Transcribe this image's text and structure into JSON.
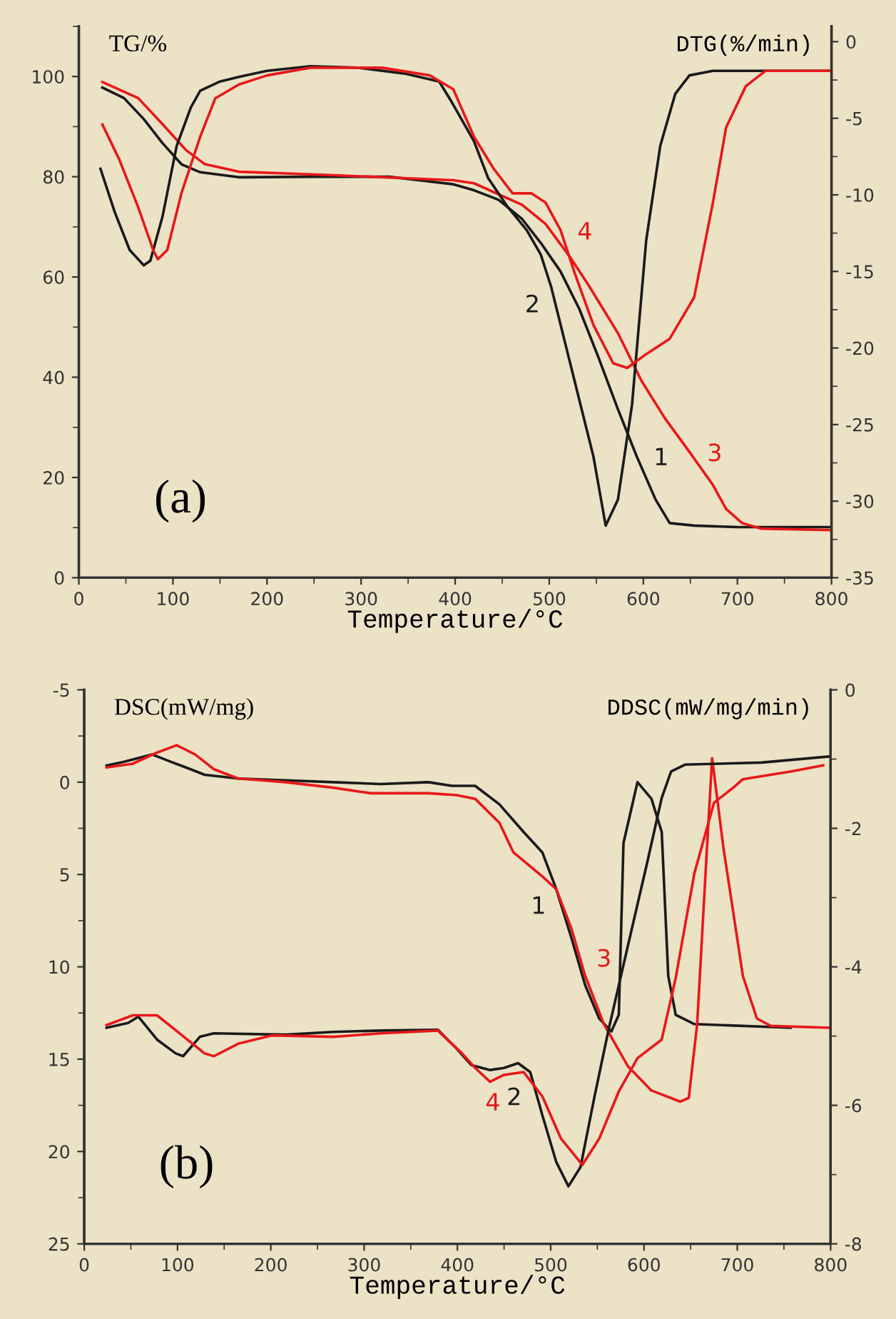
{
  "chart_data": [
    {
      "type": "line",
      "title": "(a)",
      "xlabel": "Temperature/°C",
      "ylabel": "TG/%",
      "y2label": "DTG(%/min)",
      "xlim": [
        0,
        800
      ],
      "xticks": [
        0,
        {
          "value": 50,
          "label": null
        },
        100,
        {
          "value": 150,
          "label": null
        },
        200,
        {
          "value": 250,
          "label": null
        },
        300,
        {
          "value": 350,
          "label": null
        },
        400,
        {
          "value": 450,
          "label": null
        },
        500,
        {
          "value": 550,
          "label": null
        },
        600,
        {
          "value": 650,
          "label": null
        },
        700,
        {
          "value": 750,
          "label": null
        },
        800
      ],
      "ylim": [
        0,
        110
      ],
      "yticks": [
        0,
        {
          "value": 10,
          "label": null
        },
        20,
        {
          "value": 30,
          "label": null
        },
        40,
        {
          "value": 50,
          "label": null
        },
        60,
        {
          "value": 70,
          "label": null
        },
        80,
        {
          "value": 90,
          "label": null
        },
        100,
        {
          "value": 110,
          "label": null
        }
      ],
      "y2lim": [
        -35,
        1
      ],
      "y2ticks": [
        -35,
        {
          "value": -32.5,
          "label": null
        },
        -30,
        {
          "value": -27.5,
          "label": null
        },
        -25,
        {
          "value": -22.5,
          "label": null
        },
        -20,
        {
          "value": -17.5,
          "label": null
        },
        -15,
        {
          "value": -12.5,
          "label": null
        },
        -10,
        {
          "value": -7.5,
          "label": null
        },
        -5,
        {
          "value": -2.5,
          "label": null
        },
        0
      ],
      "grid": false,
      "legend": false,
      "line_style": "solid",
      "marker": "none",
      "series": [
        {
          "name": "1",
          "color": "#1a1a1a",
          "x": [
            25,
            48,
            69,
            89,
            109,
            129,
            170,
            250,
            330,
            398,
            420,
            446,
            471,
            491,
            512,
            532,
            552,
            573,
            593,
            613,
            628,
            654,
            700,
            800
          ],
          "values": [
            97.8,
            95.7,
            91.5,
            86.7,
            82.5,
            80.9,
            79.9,
            80.0,
            80.0,
            78.5,
            77.3,
            75.4,
            71.6,
            66.8,
            61.1,
            53.6,
            44.1,
            33.6,
            24.2,
            15.6,
            10.9,
            10.4,
            10.1,
            10.1
          ]
        },
        {
          "name": "2",
          "color": "#1a1a1a",
          "axis": "y2",
          "x": [
            23,
            38,
            54,
            69,
            76,
            89,
            104,
            119,
            129,
            150,
            170,
            200,
            246,
            297,
            348,
            383,
            395,
            420,
            435,
            456,
            476,
            491,
            502,
            517,
            532,
            547,
            560,
            573,
            588,
            603,
            618,
            634,
            649,
            674,
            800
          ],
          "values": [
            -8.3,
            -11.1,
            -13.6,
            -14.6,
            -14.3,
            -11.4,
            -6.8,
            -4.3,
            -3.2,
            -2.6,
            -2.3,
            -1.9,
            -1.6,
            -1.7,
            -2.1,
            -2.6,
            -3.8,
            -6.5,
            -8.9,
            -10.8,
            -12.3,
            -13.9,
            -16.0,
            -19.7,
            -23.4,
            -27.1,
            -31.6,
            -29.9,
            -23.7,
            -13.0,
            -6.8,
            -3.4,
            -2.2,
            -1.9,
            -1.9
          ]
        },
        {
          "name": "3",
          "color": "#e8181a",
          "x": [
            25,
            63,
            89,
            114,
            134,
            170,
            272,
            398,
            420,
            471,
            496,
            522,
            542,
            573,
            598,
            623,
            649,
            674,
            688,
            705,
            725,
            800
          ],
          "values": [
            98.9,
            95.7,
            90.5,
            85.3,
            82.5,
            81.0,
            80.3,
            79.3,
            78.7,
            74.4,
            70.6,
            64.0,
            58.3,
            48.8,
            39.3,
            31.8,
            25.1,
            18.5,
            13.7,
            10.9,
            9.8,
            9.5
          ]
        },
        {
          "name": "4",
          "color": "#e8181a",
          "axis": "y2",
          "x": [
            25,
            43,
            63,
            79,
            84,
            94,
            109,
            129,
            145,
            170,
            200,
            246,
            322,
            373,
            398,
            420,
            441,
            461,
            481,
            496,
            512,
            527,
            547,
            568,
            583,
            603,
            628,
            654,
            674,
            688,
            709,
            730,
            800
          ],
          "values": [
            -5.4,
            -7.7,
            -10.8,
            -13.6,
            -14.2,
            -13.6,
            -9.9,
            -6.2,
            -3.7,
            -2.8,
            -2.2,
            -1.7,
            -1.7,
            -2.2,
            -3.1,
            -6.2,
            -8.3,
            -9.9,
            -9.9,
            -10.5,
            -12.3,
            -15.1,
            -18.5,
            -21.0,
            -21.3,
            -20.4,
            -19.4,
            -16.7,
            -10.5,
            -5.6,
            -2.9,
            -1.9,
            -1.9
          ]
        }
      ]
    },
    {
      "type": "line",
      "title": "(b)",
      "xlabel": "Temperature/°C",
      "ylabel": "DSC(mW/mg)",
      "y2label": "DDSC(mW/mg/min)",
      "xlim": [
        0,
        800
      ],
      "xticks": [
        0,
        {
          "value": 50,
          "label": null
        },
        100,
        {
          "value": 150,
          "label": null
        },
        200,
        {
          "value": 250,
          "label": null
        },
        300,
        {
          "value": 350,
          "label": null
        },
        400,
        {
          "value": 450,
          "label": null
        },
        500,
        {
          "value": 550,
          "label": null
        },
        600,
        {
          "value": 650,
          "label": null
        },
        700,
        {
          "value": 750,
          "label": null
        },
        800
      ],
      "ylim": [
        25,
        -5
      ],
      "yticks": [
        -5,
        {
          "value": -2.5,
          "label": null
        },
        0,
        {
          "value": 2.5,
          "label": null
        },
        5,
        {
          "value": 7.5,
          "label": null
        },
        10,
        {
          "value": 12.5,
          "label": null
        },
        15,
        {
          "value": 17.5,
          "label": null
        },
        20,
        {
          "value": 22.5,
          "label": null
        },
        25
      ],
      "y2lim": [
        -8,
        0
      ],
      "y2ticks": [
        -8,
        {
          "value": -7,
          "label": null
        },
        -6,
        {
          "value": -5,
          "label": null
        },
        -4,
        {
          "value": -3,
          "label": null
        },
        -2,
        {
          "value": -1,
          "label": null
        },
        0
      ],
      "grid": false,
      "legend": false,
      "line_style": "solid",
      "marker": "none",
      "series": [
        {
          "name": "1",
          "color": "#1a1a1a",
          "x": [
            24,
            42,
            73,
            93,
            114,
            129,
            165,
            216,
            267,
            318,
            369,
            394,
            419,
            445,
            471,
            491,
            506,
            522,
            537,
            552,
            565,
            573,
            578,
            593,
            608,
            619,
            626,
            634,
            654,
            757
          ],
          "values": [
            -0.9,
            -1.1,
            -1.5,
            -1.1,
            -0.7,
            -0.4,
            -0.2,
            -0.1,
            0.0,
            0.1,
            0.0,
            0.2,
            0.2,
            1.2,
            2.7,
            3.8,
            5.8,
            8.4,
            11.0,
            12.8,
            13.5,
            12.6,
            3.3,
            0.0,
            0.9,
            2.7,
            10.5,
            12.6,
            13.1,
            13.3
          ]
        },
        {
          "name": "2",
          "color": "#1a1a1a",
          "axis": "y2",
          "x": [
            24,
            47,
            58,
            78,
            98,
            106,
            124,
            139,
            216,
            267,
            318,
            379,
            399,
            415,
            435,
            450,
            465,
            478,
            491,
            506,
            519,
            532,
            547,
            562,
            583,
            603,
            619,
            629,
            644,
            726,
            800
          ],
          "values": [
            -4.88,
            -4.81,
            -4.72,
            -5.05,
            -5.25,
            -5.29,
            -5.01,
            -4.96,
            -4.98,
            -4.94,
            -4.92,
            -4.91,
            -5.18,
            -5.42,
            -5.49,
            -5.46,
            -5.39,
            -5.52,
            -6.14,
            -6.82,
            -7.17,
            -6.89,
            -5.87,
            -4.91,
            -3.68,
            -2.52,
            -1.56,
            -1.18,
            -1.08,
            -1.05,
            -0.96
          ]
        },
        {
          "name": "3",
          "color": "#e8181a",
          "x": [
            24,
            52,
            78,
            99,
            119,
            139,
            165,
            216,
            267,
            307,
            369,
            399,
            419,
            445,
            460,
            491,
            506,
            522,
            537,
            557,
            583,
            608,
            639,
            648,
            657,
            667,
            673,
            685,
            706,
            721,
            736,
            800
          ],
          "values": [
            -0.8,
            -1.0,
            -1.6,
            -2.0,
            -1.5,
            -0.7,
            -0.2,
            0.0,
            0.3,
            0.6,
            0.6,
            0.7,
            0.9,
            2.2,
            3.8,
            5.1,
            5.8,
            7.9,
            10.5,
            13.1,
            15.4,
            16.7,
            17.3,
            17.1,
            13.1,
            4.0,
            -1.3,
            3.5,
            10.5,
            12.8,
            13.2,
            13.3
          ]
        },
        {
          "name": "4",
          "color": "#e8181a",
          "axis": "y2",
          "x": [
            24,
            52,
            78,
            104,
            129,
            139,
            165,
            201,
            267,
            318,
            379,
            405,
            419,
            435,
            450,
            471,
            491,
            511,
            534,
            552,
            573,
            593,
            619,
            634,
            654,
            675,
            695,
            706,
            757,
            792
          ],
          "values": [
            -4.84,
            -4.7,
            -4.7,
            -4.98,
            -5.25,
            -5.29,
            -5.11,
            -4.99,
            -5.01,
            -4.96,
            -4.92,
            -5.25,
            -5.46,
            -5.66,
            -5.56,
            -5.52,
            -5.87,
            -6.48,
            -6.86,
            -6.48,
            -5.8,
            -5.32,
            -5.05,
            -4.16,
            -2.65,
            -1.63,
            -1.42,
            -1.29,
            -1.18,
            -1.09
          ]
        }
      ]
    }
  ]
}
